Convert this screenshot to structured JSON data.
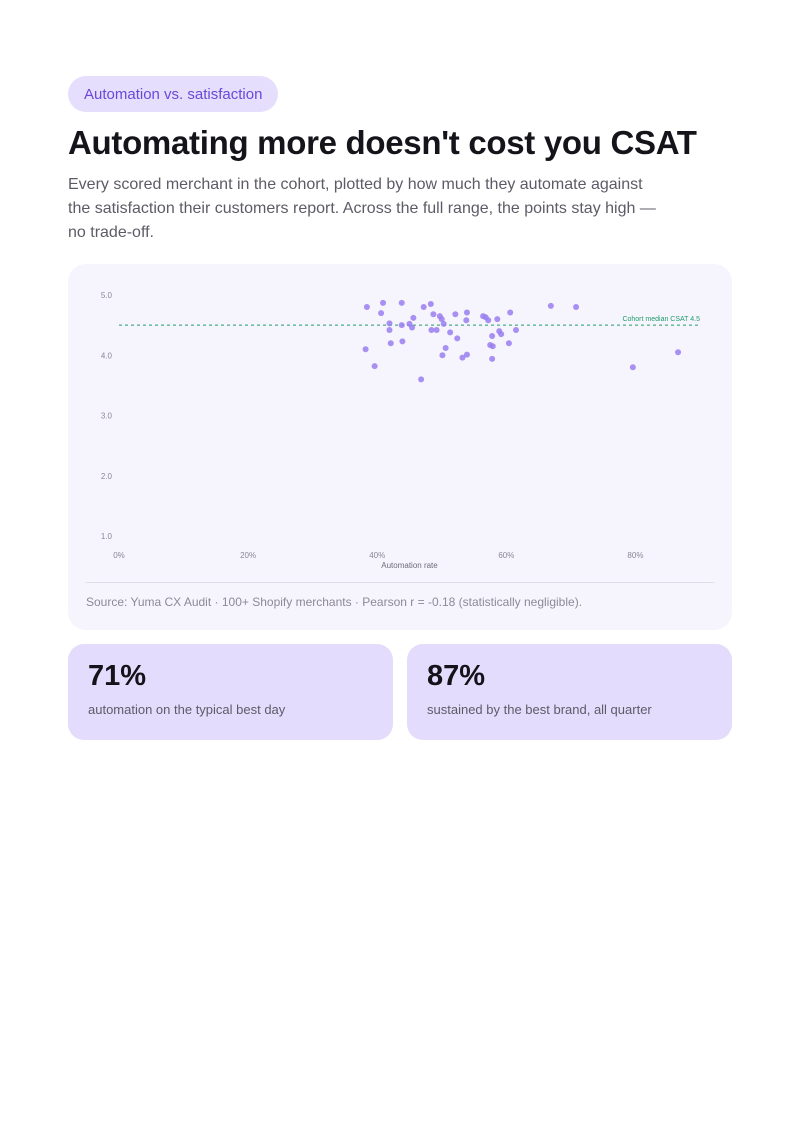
{
  "header": {
    "tag": "Automation vs. satisfaction",
    "title": "Automating more doesn't cost you CSAT",
    "subtitle": "Every scored merchant in the cohort, plotted by how much they automate against the satisfaction their customers report. Across the full range, the points stay high — no trade-off."
  },
  "chart_data": {
    "type": "scatter",
    "xlabel": "Automation rate",
    "ylabel": "",
    "xlim": [
      0,
      90
    ],
    "ylim": [
      1.0,
      5.0
    ],
    "x_ticks": [
      0,
      20,
      40,
      60,
      80
    ],
    "x_tick_labels": [
      "0%",
      "20%",
      "40%",
      "60%",
      "80%"
    ],
    "y_ticks": [
      5.0,
      4.0,
      3.0,
      2.0,
      1.0
    ],
    "y_tick_labels": [
      "5.0",
      "4.0",
      "3.0",
      "2.0",
      "1.0"
    ],
    "grid": false,
    "point_color": "#9a7ef0",
    "reference_line": {
      "y": 4.5,
      "label": "Cohort median CSAT 4.5",
      "color": "#1f9e6a",
      "style": "dashed"
    },
    "points": [
      {
        "x": 38.4,
        "y": 4.8
      },
      {
        "x": 40.9,
        "y": 4.87
      },
      {
        "x": 43.8,
        "y": 4.87
      },
      {
        "x": 47.2,
        "y": 4.8
      },
      {
        "x": 48.3,
        "y": 4.85
      },
      {
        "x": 40.6,
        "y": 4.7
      },
      {
        "x": 43.8,
        "y": 4.5
      },
      {
        "x": 41.9,
        "y": 4.53
      },
      {
        "x": 45.0,
        "y": 4.52
      },
      {
        "x": 45.6,
        "y": 4.62
      },
      {
        "x": 45.4,
        "y": 4.46
      },
      {
        "x": 48.7,
        "y": 4.68
      },
      {
        "x": 49.7,
        "y": 4.65
      },
      {
        "x": 50.0,
        "y": 4.6
      },
      {
        "x": 50.3,
        "y": 4.52
      },
      {
        "x": 52.1,
        "y": 4.68
      },
      {
        "x": 53.9,
        "y": 4.71
      },
      {
        "x": 53.8,
        "y": 4.58
      },
      {
        "x": 56.4,
        "y": 4.65
      },
      {
        "x": 56.8,
        "y": 4.63
      },
      {
        "x": 57.2,
        "y": 4.58
      },
      {
        "x": 58.6,
        "y": 4.6
      },
      {
        "x": 60.6,
        "y": 4.71
      },
      {
        "x": 66.9,
        "y": 4.82
      },
      {
        "x": 70.8,
        "y": 4.8
      },
      {
        "x": 48.4,
        "y": 4.42
      },
      {
        "x": 49.2,
        "y": 4.42
      },
      {
        "x": 51.3,
        "y": 4.38
      },
      {
        "x": 52.4,
        "y": 4.28
      },
      {
        "x": 58.9,
        "y": 4.4
      },
      {
        "x": 59.2,
        "y": 4.35
      },
      {
        "x": 57.8,
        "y": 4.32
      },
      {
        "x": 61.5,
        "y": 4.42
      },
      {
        "x": 41.9,
        "y": 4.42
      },
      {
        "x": 42.1,
        "y": 4.2
      },
      {
        "x": 43.9,
        "y": 4.23
      },
      {
        "x": 50.6,
        "y": 4.12
      },
      {
        "x": 50.1,
        "y": 4.0
      },
      {
        "x": 53.2,
        "y": 3.96
      },
      {
        "x": 53.9,
        "y": 4.01
      },
      {
        "x": 57.5,
        "y": 4.17
      },
      {
        "x": 57.9,
        "y": 4.15
      },
      {
        "x": 57.8,
        "y": 3.94
      },
      {
        "x": 60.4,
        "y": 4.2
      },
      {
        "x": 38.2,
        "y": 4.1
      },
      {
        "x": 39.6,
        "y": 3.82
      },
      {
        "x": 46.8,
        "y": 3.6
      },
      {
        "x": 79.6,
        "y": 3.8
      },
      {
        "x": 86.6,
        "y": 4.05
      }
    ]
  },
  "footer": {
    "source": "Source: Yuma CX Audit · 100+ Shopify merchants · Pearson r = -0.18 (statistically negligible)."
  },
  "stats": [
    {
      "value": "71%",
      "label": "automation on the typical best day"
    },
    {
      "value": "87%",
      "label": "sustained by the best brand, all quarter"
    }
  ]
}
